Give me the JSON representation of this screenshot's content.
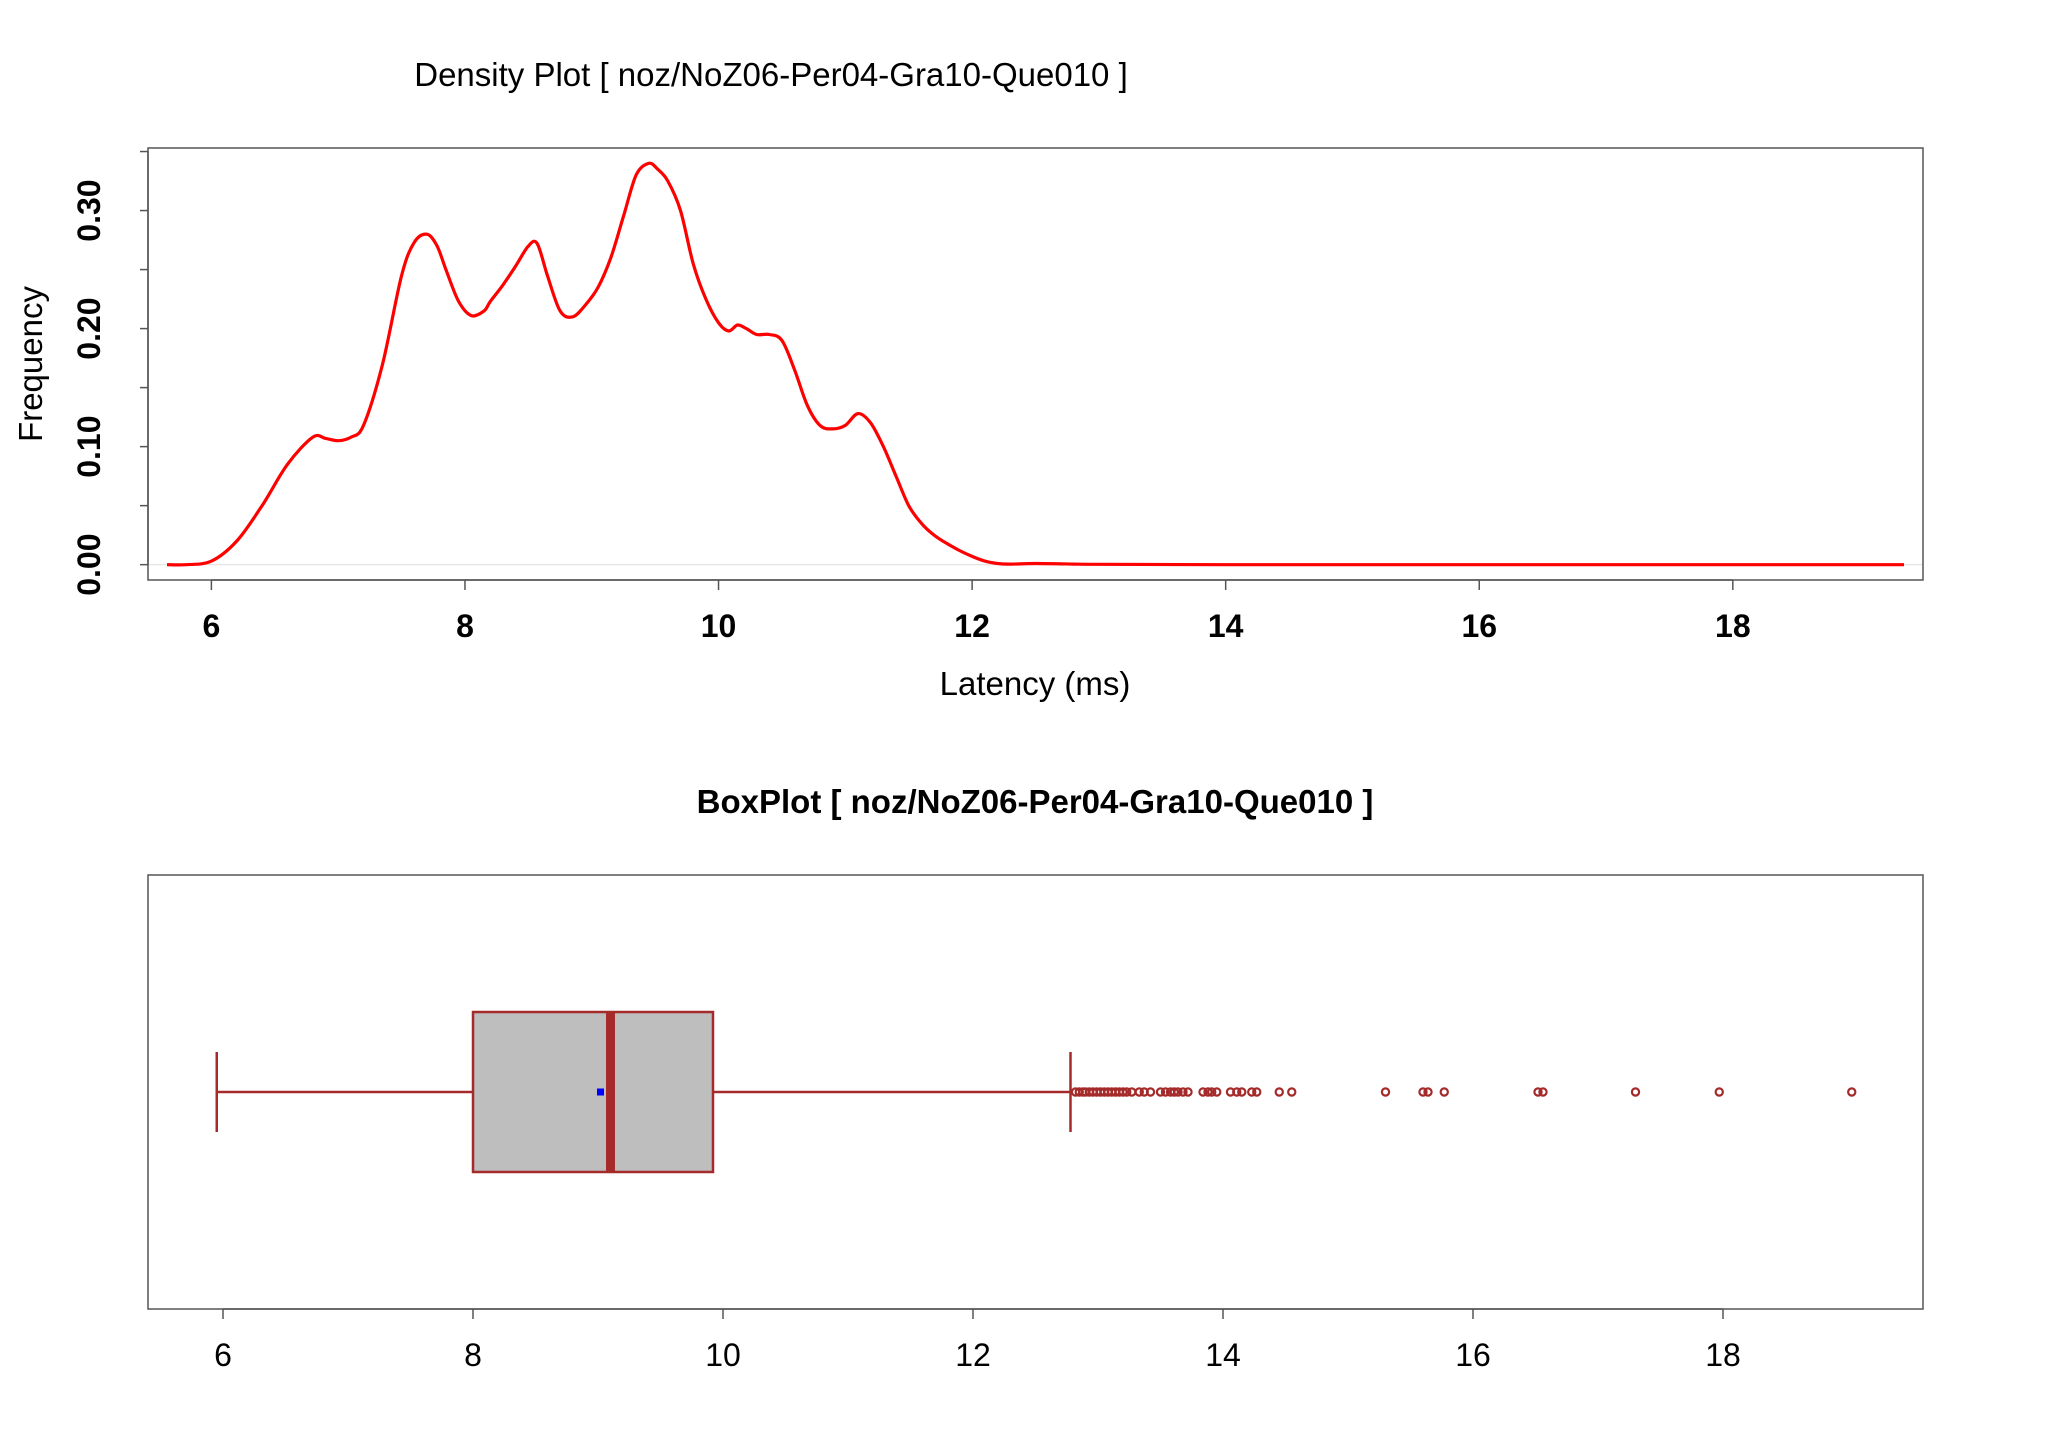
{
  "chart_data": [
    {
      "type": "line",
      "title": "Density Plot [ noz/NoZ06-Per04-Gra10-Que010 ]",
      "xlabel": "Latency (ms)",
      "ylabel": "Frequency",
      "xlim": [
        5.5,
        19.5
      ],
      "ylim": [
        -0.013,
        0.353
      ],
      "x_ticks": [
        6,
        8,
        10,
        12,
        14,
        16,
        18
      ],
      "x_tick_labels": [
        "6",
        "8",
        "10",
        "12",
        "14",
        "16",
        "18"
      ],
      "y_ticks": [
        0.0,
        0.1,
        0.2,
        0.3
      ],
      "y_tick_labels": [
        "0.00",
        "0.10",
        "0.20",
        "0.30"
      ],
      "grid": false,
      "line_color": "#ff0000",
      "series": [
        {
          "x": [
            5.65,
            5.8,
            6.0,
            6.2,
            6.4,
            6.6,
            6.8,
            6.9,
            7.0,
            7.1,
            7.2,
            7.35,
            7.5,
            7.6,
            7.7,
            7.78,
            7.85,
            7.95,
            8.05,
            8.15,
            8.2,
            8.3,
            8.4,
            8.5,
            8.57,
            8.65,
            8.75,
            8.85,
            8.95,
            9.05,
            9.15,
            9.25,
            9.35,
            9.45,
            9.52,
            9.6,
            9.7,
            9.8,
            9.9,
            10.0,
            10.08,
            10.15,
            10.22,
            10.3,
            10.4,
            10.5,
            10.6,
            10.7,
            10.8,
            10.9,
            11.0,
            11.1,
            11.2,
            11.3,
            11.4,
            11.5,
            11.6,
            11.7,
            11.8,
            11.9,
            12.0,
            12.1,
            12.2,
            12.3,
            12.5,
            12.8,
            13.0,
            14.0,
            15.0,
            16.0,
            17.0,
            18.0,
            19.35
          ],
          "y": [
            0.0,
            0.0,
            0.003,
            0.02,
            0.05,
            0.085,
            0.108,
            0.107,
            0.105,
            0.108,
            0.118,
            0.17,
            0.245,
            0.273,
            0.28,
            0.27,
            0.25,
            0.223,
            0.211,
            0.215,
            0.223,
            0.237,
            0.253,
            0.27,
            0.272,
            0.245,
            0.215,
            0.21,
            0.22,
            0.235,
            0.26,
            0.295,
            0.33,
            0.34,
            0.335,
            0.325,
            0.3,
            0.255,
            0.225,
            0.205,
            0.198,
            0.203,
            0.2,
            0.195,
            0.195,
            0.19,
            0.165,
            0.135,
            0.118,
            0.115,
            0.118,
            0.128,
            0.12,
            0.1,
            0.075,
            0.05,
            0.035,
            0.025,
            0.018,
            0.012,
            0.007,
            0.003,
            0.001,
            0.0005,
            0.001,
            0.0005,
            0.0003,
            0.0,
            0.0,
            0.0,
            0.0,
            0.0,
            0.0
          ]
        }
      ]
    },
    {
      "type": "box",
      "title": "BoxPlot [ noz/NoZ06-Per04-Gra10-Que010 ]",
      "xlim": [
        5.4,
        19.6
      ],
      "x_ticks": [
        6,
        8,
        10,
        12,
        14,
        16,
        18
      ],
      "x_tick_labels": [
        "6",
        "8",
        "10",
        "12",
        "14",
        "16",
        "18"
      ],
      "whisker_low": 5.95,
      "q1": 8.0,
      "median": 9.1,
      "q3": 9.92,
      "whisker_high": 12.78,
      "mean": 9.02,
      "box_fill": "#bebebe",
      "box_stroke": "#a52a2a",
      "mean_color": "#0000ff",
      "outliers": [
        12.82,
        12.85,
        12.88,
        12.9,
        12.93,
        12.96,
        12.99,
        13.02,
        13.05,
        13.08,
        13.11,
        13.14,
        13.17,
        13.2,
        13.23,
        13.27,
        13.33,
        13.37,
        13.42,
        13.5,
        13.54,
        13.58,
        13.61,
        13.64,
        13.68,
        13.72,
        13.84,
        13.88,
        13.91,
        13.95,
        14.06,
        14.11,
        14.15,
        14.23,
        14.27,
        14.45,
        14.55,
        15.3,
        15.6,
        15.64,
        15.77,
        16.52,
        16.56,
        17.3,
        17.97,
        19.03
      ]
    }
  ]
}
